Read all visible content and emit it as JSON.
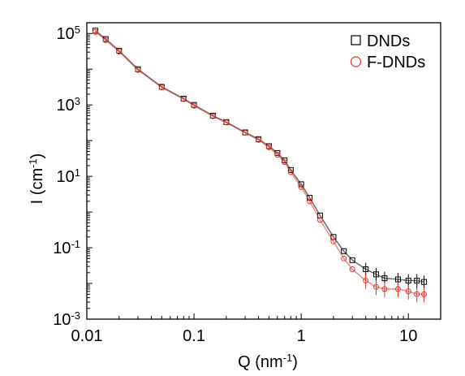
{
  "chart_data": {
    "type": "scatter",
    "title": "",
    "xlabel": {
      "base": "Q (nm",
      "sup": "-1",
      "end": ")"
    },
    "ylabel": {
      "base": "I (cm",
      "sup": "-1",
      "end": ")"
    },
    "x_scale": "log",
    "y_scale": "log",
    "xlim": [
      0.01,
      20
    ],
    "ylim": [
      0.001,
      200000
    ],
    "x_ticks": [
      {
        "value": 0.01,
        "label": "0.01"
      },
      {
        "value": 0.1,
        "label": "0.1"
      },
      {
        "value": 1,
        "label": "1"
      },
      {
        "value": 10,
        "label": "10"
      }
    ],
    "y_ticks": [
      {
        "value": 0.001,
        "base": "10",
        "exp": "-3"
      },
      {
        "value": 0.1,
        "base": "10",
        "exp": "-1"
      },
      {
        "value": 10,
        "base": "10",
        "exp": "1"
      },
      {
        "value": 1000,
        "base": "10",
        "exp": "3"
      },
      {
        "value": 100000,
        "base": "10",
        "exp": "5"
      }
    ],
    "grid": false,
    "legend_position": "top-right",
    "series": [
      {
        "name": "DNDs",
        "marker": "square",
        "color": "#000000",
        "points": [
          [
            0.012,
            120000
          ],
          [
            0.015,
            70000
          ],
          [
            0.02,
            33000
          ],
          [
            0.03,
            10000
          ],
          [
            0.05,
            3200
          ],
          [
            0.08,
            1500
          ],
          [
            0.1,
            1000
          ],
          [
            0.15,
            500
          ],
          [
            0.2,
            330
          ],
          [
            0.3,
            170
          ],
          [
            0.4,
            110
          ],
          [
            0.5,
            70
          ],
          [
            0.6,
            45
          ],
          [
            0.7,
            28
          ],
          [
            0.8,
            15
          ],
          [
            1.0,
            6
          ],
          [
            1.2,
            2.5
          ],
          [
            1.5,
            0.8
          ],
          [
            2.0,
            0.2
          ],
          [
            2.5,
            0.08
          ],
          [
            3.0,
            0.045
          ],
          [
            4.0,
            0.025
          ],
          [
            5.0,
            0.018
          ],
          [
            6.0,
            0.014
          ],
          [
            8.0,
            0.013
          ],
          [
            10.0,
            0.012
          ],
          [
            12.0,
            0.012
          ],
          [
            14.0,
            0.011
          ]
        ]
      },
      {
        "name": "F-DNDs",
        "marker": "circle",
        "color": "#e8332a",
        "points": [
          [
            0.012,
            110000
          ],
          [
            0.015,
            65000
          ],
          [
            0.02,
            31000
          ],
          [
            0.03,
            9500
          ],
          [
            0.05,
            3100
          ],
          [
            0.08,
            1450
          ],
          [
            0.1,
            950
          ],
          [
            0.15,
            480
          ],
          [
            0.2,
            320
          ],
          [
            0.3,
            165
          ],
          [
            0.4,
            105
          ],
          [
            0.5,
            65
          ],
          [
            0.6,
            40
          ],
          [
            0.7,
            25
          ],
          [
            0.8,
            13
          ],
          [
            1.0,
            5
          ],
          [
            1.2,
            2
          ],
          [
            1.5,
            0.6
          ],
          [
            2.0,
            0.15
          ],
          [
            2.5,
            0.05
          ],
          [
            3.0,
            0.025
          ],
          [
            4.0,
            0.012
          ],
          [
            5.0,
            0.008
          ],
          [
            6.0,
            0.007
          ],
          [
            8.0,
            0.007
          ],
          [
            10.0,
            0.006
          ],
          [
            12.0,
            0.005
          ],
          [
            14.0,
            0.005
          ]
        ]
      }
    ]
  }
}
